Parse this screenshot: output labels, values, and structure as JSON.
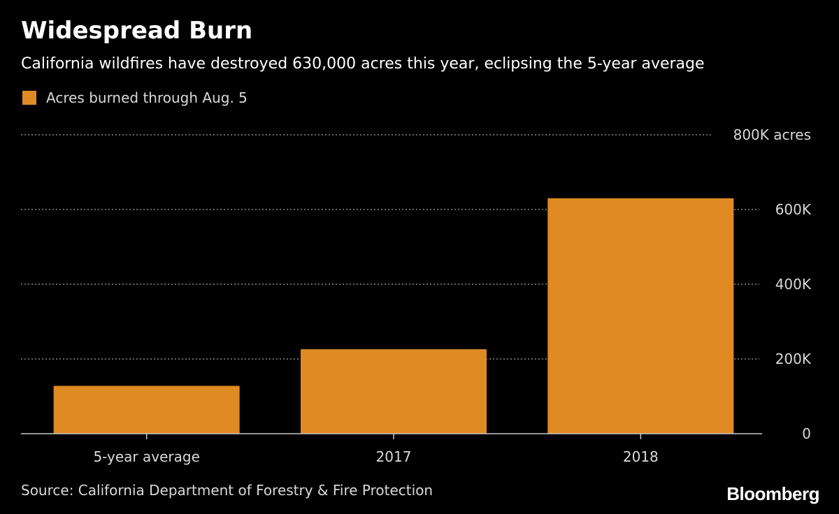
{
  "colors": {
    "background": "#000000",
    "bar": "#E08A24",
    "gridline": "#8a8a8a",
    "axis": "#c8c8c8",
    "label": "#d9d9d9"
  },
  "footer": {
    "source": "Source: California Department of Forestry & Fire Protection",
    "brand": "Bloomberg"
  },
  "chart_data": {
    "type": "bar",
    "title": "Widespread Burn",
    "subtitle": "California wildfires have destroyed 630,000 acres this year, eclipsing the 5-year average",
    "categories": [
      "5-year average",
      "2017",
      "2018"
    ],
    "series": [
      {
        "name": "Acres burned through Aug. 5",
        "values": [
          128000,
          226000,
          630000
        ]
      }
    ],
    "ylim": [
      0,
      800000
    ],
    "yticks": [
      0,
      200000,
      400000,
      600000,
      800000
    ],
    "ytick_labels": [
      "0",
      "200K",
      "400K",
      "600K",
      "800K acres"
    ],
    "grid": "horizontal dotted",
    "y_axis_side": "right",
    "legend_position": "top-left"
  }
}
